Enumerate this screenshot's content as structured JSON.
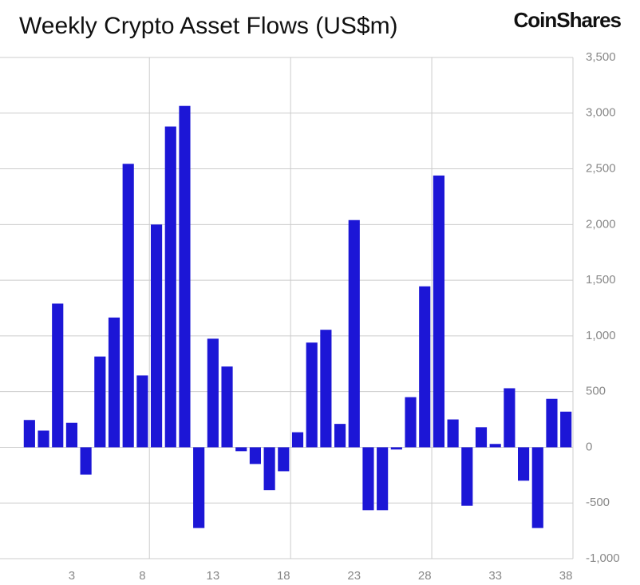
{
  "chart_data": {
    "type": "bar",
    "title": "Weekly Crypto Asset Flows (US$m)",
    "brand": "CoinShares",
    "categories": [
      null,
      null,
      null,
      "3",
      null,
      null,
      null,
      null,
      "8",
      null,
      null,
      null,
      null,
      "13",
      null,
      null,
      null,
      null,
      "18",
      null,
      null,
      null,
      null,
      "23",
      null,
      null,
      null,
      null,
      "28",
      null,
      null,
      null,
      null,
      "33",
      null,
      null,
      null,
      null,
      "38"
    ],
    "values": [
      245,
      150,
      1290,
      220,
      -245,
      815,
      1165,
      2545,
      645,
      2000,
      2880,
      3065,
      -725,
      975,
      725,
      -35,
      -150,
      -385,
      -215,
      135,
      940,
      1055,
      210,
      2040,
      -565,
      -565,
      -20,
      450,
      1445,
      2440,
      250,
      -525,
      180,
      30,
      530,
      -300,
      -725,
      435,
      320
    ],
    "color": "#1c16d6",
    "ylim": [
      -1000,
      3500
    ],
    "yticks": [
      {
        "value": -1000,
        "label": "-1,000"
      },
      -500,
      0,
      500,
      {
        "value": 1000,
        "label": "1,000"
      },
      {
        "value": 1500,
        "label": "1,500"
      },
      {
        "value": 2000,
        "label": "2,000"
      },
      {
        "value": 2500,
        "label": "2,500"
      },
      {
        "value": 3000,
        "label": "3,000"
      },
      {
        "value": 3500,
        "label": "3,500"
      }
    ],
    "grid": true
  }
}
